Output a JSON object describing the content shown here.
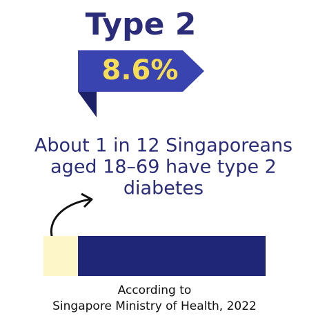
{
  "header": {
    "title": "Type 2",
    "badge": "8.6%"
  },
  "description": {
    "lines": [
      "About 1 in 12 Singaporeans",
      "aged 18–69 have type 2",
      "diabetes"
    ]
  },
  "source": {
    "lines": [
      "According to",
      "Singapore Ministry of Health, 2022"
    ]
  }
}
